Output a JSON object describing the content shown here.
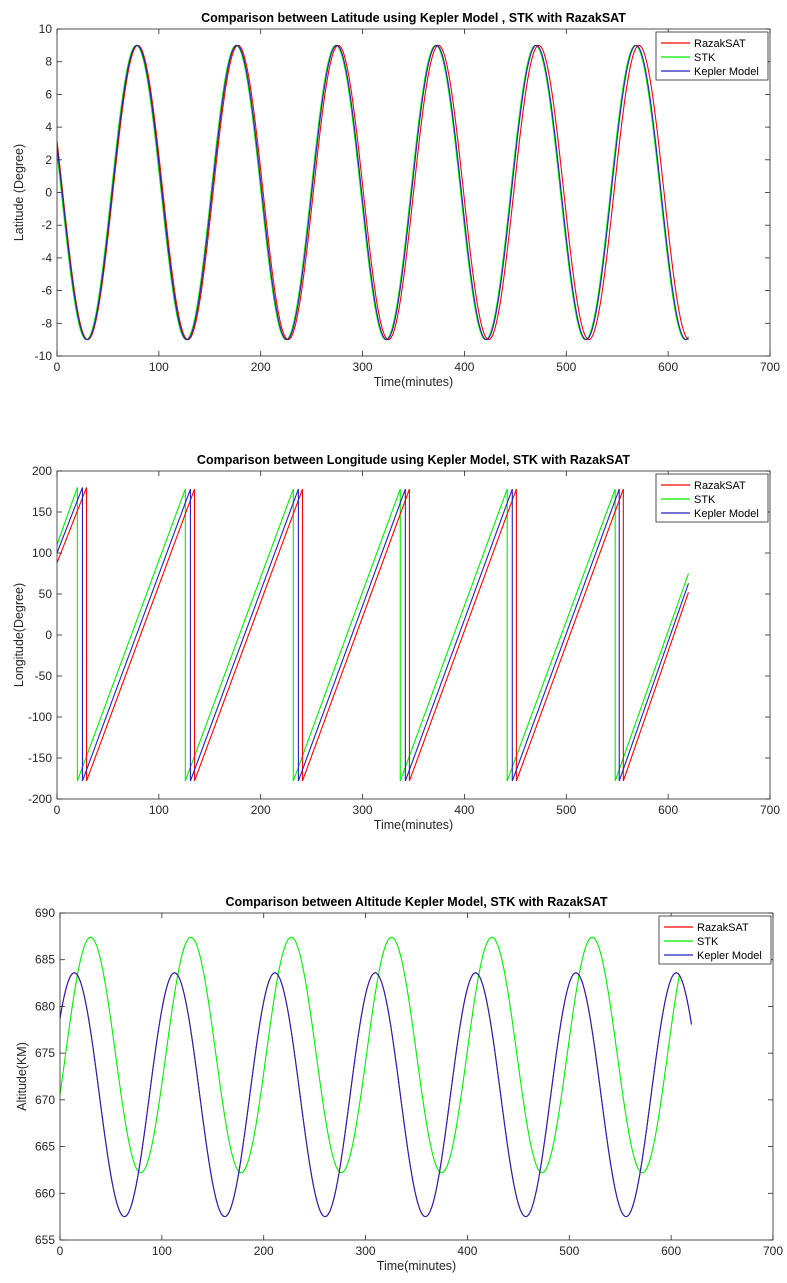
{
  "colors": {
    "RazakSAT": "#ff0000",
    "STK": "#00ee00",
    "Kepler Model": "#2222bb"
  },
  "chart_data": [
    {
      "type": "line",
      "title": "Comparison between Latitude using Kepler Model , STK  with RazakSAT",
      "xlabel": "Time(minutes)",
      "ylabel": "Latitude (Degree)",
      "xlim": [
        0,
        700
      ],
      "ylim": [
        -10,
        10
      ],
      "xticks": [
        "0",
        "100",
        "200",
        "300",
        "400",
        "500",
        "600",
        "700"
      ],
      "yticks": [
        "-10",
        "-8",
        "-6",
        "-4",
        "-2",
        "0",
        "2",
        "4",
        "6",
        "8",
        "10"
      ],
      "legend": "top-right",
      "series": [
        {
          "name": "RazakSAT",
          "amplitude": 9.0,
          "period_min": 98.4,
          "peak_time_min": 79.4,
          "t_start": 0,
          "t_end": 620
        },
        {
          "name": "STK",
          "amplitude": 9.0,
          "period_min": 98.0,
          "peak_time_min": 77.8,
          "t_start": 0,
          "t_end": 620
        },
        {
          "name": "Kepler Model",
          "amplitude": 9.0,
          "period_min": 98.0,
          "peak_time_min": 78.6,
          "t_start": 0,
          "t_end": 620
        }
      ]
    },
    {
      "type": "line",
      "title": "Comparison between Longitude using Kepler Model, STK with RazakSAT",
      "xlabel": "Time(minutes)",
      "ylabel": "Longitude(Degree)",
      "xlim": [
        0,
        700
      ],
      "ylim": [
        -200,
        200
      ],
      "xticks": [
        "0",
        "100",
        "200",
        "300",
        "400",
        "500",
        "600",
        "700"
      ],
      "yticks": [
        "-200",
        "-150",
        "-100",
        "-50",
        "0",
        "50",
        "100",
        "150",
        "200"
      ],
      "legend": "top-right",
      "series": [
        {
          "name": "RazakSAT",
          "start_value": 88,
          "end_value": 52,
          "wrap_times_min": [
            29,
            135,
            241,
            346,
            451,
            556
          ],
          "t_start": 0,
          "t_end": 620
        },
        {
          "name": "STK",
          "start_value": 110,
          "end_value": 75,
          "wrap_times_min": [
            20,
            126,
            232,
            337,
            442,
            548
          ],
          "t_start": 0,
          "t_end": 620
        },
        {
          "name": "Kepler Model",
          "start_value": 100,
          "end_value": 63,
          "wrap_times_min": [
            25,
            131,
            237,
            342,
            447,
            552
          ],
          "t_start": 0,
          "t_end": 620
        }
      ]
    },
    {
      "type": "line",
      "title": "Comparison between Altitude Kepler Model, STK with RazakSAT",
      "xlabel": "Time(minutes)",
      "ylabel": "Altitude(KM)",
      "xlim": [
        0,
        700
      ],
      "ylim": [
        655,
        690
      ],
      "xticks": [
        "0",
        "100",
        "200",
        "300",
        "400",
        "500",
        "600",
        "700"
      ],
      "yticks": [
        "655",
        "660",
        "665",
        "670",
        "675",
        "680",
        "685",
        "690"
      ],
      "legend": "top-right",
      "series": [
        {
          "name": "RazakSAT",
          "min": 657.5,
          "max": 683.6,
          "period_min": 98.5,
          "peak_time_min": 14,
          "t_start": 0,
          "t_end": 620
        },
        {
          "name": "STK",
          "min": 662.2,
          "max": 687.4,
          "period_min": 98.5,
          "peak_time_min": 30,
          "t_start": 0,
          "t_end": 608
        },
        {
          "name": "Kepler Model",
          "min": 657.5,
          "max": 683.6,
          "period_min": 98.5,
          "peak_time_min": 14,
          "t_start": 0,
          "t_end": 620
        }
      ]
    }
  ]
}
